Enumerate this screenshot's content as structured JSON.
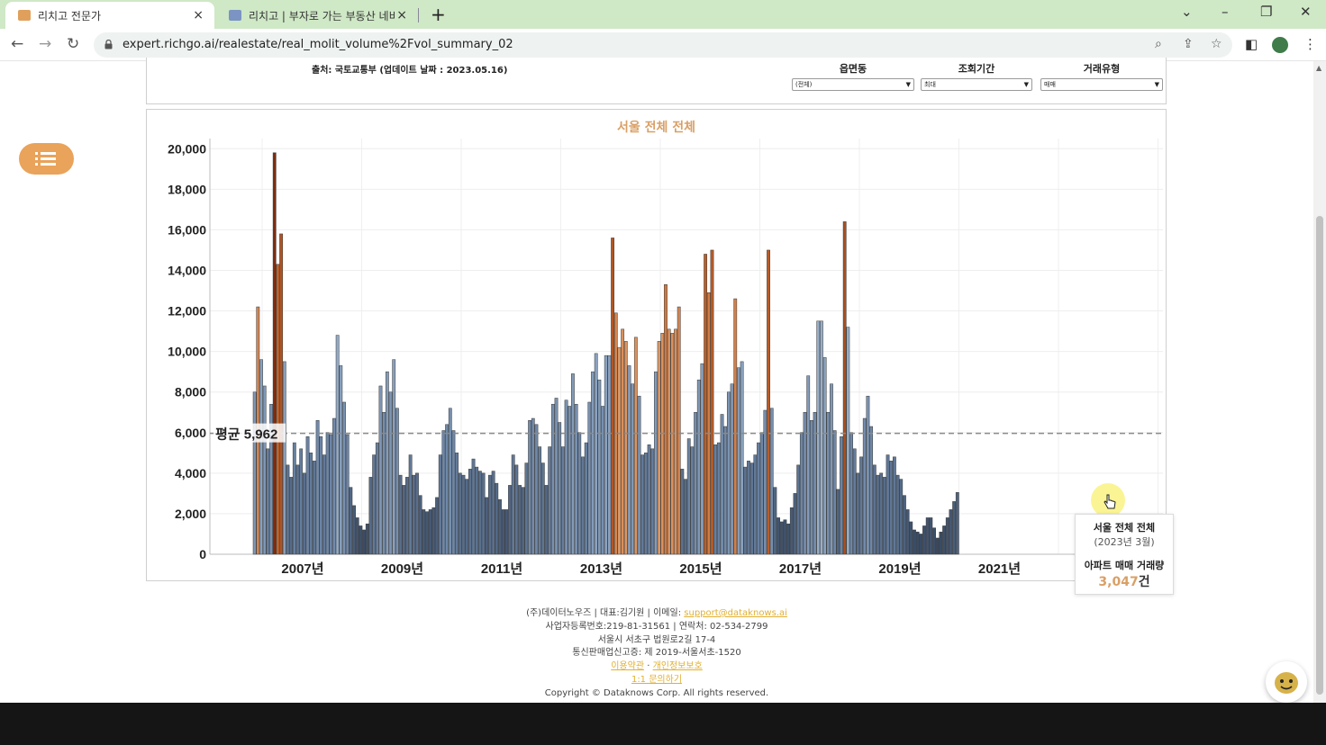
{
  "browser": {
    "tabs": [
      {
        "title": "리치고 전문가",
        "active": true
      },
      {
        "title": "리치고 | 부자로 가는 부동산 네비",
        "active": false
      }
    ],
    "new_tab_glyph": "+",
    "close_glyph": "×",
    "url": "expert.richgo.ai/realestate/real_molit_volume%2Fvol_summary_02",
    "icons": [
      "back-icon",
      "forward-icon",
      "reload-icon",
      "lock-icon",
      "zoom-icon",
      "share-icon",
      "star-icon",
      "sidepanel-icon",
      "profile-icon",
      "menu-dots-icon",
      "minimize-icon",
      "restore-icon",
      "close-window-icon",
      "tab-search-icon"
    ]
  },
  "filters": {
    "source": "출처: 국토교통부 (업데이트 날짜 : 2023.05.16)",
    "region_label": "읍면동",
    "region_value": "(전체)",
    "period_label": "조회기간",
    "period_value": "최대",
    "type_label": "거래유형",
    "type_value": "매매"
  },
  "chart_data": {
    "type": "bar",
    "title": "서울 전체 전체",
    "ylim": [
      0,
      20500
    ],
    "yticks": [
      "0",
      "2,000",
      "4,000",
      "6,000",
      "8,000",
      "10,000",
      "12,000",
      "14,000",
      "16,000",
      "18,000",
      "20,000"
    ],
    "xticks": [
      "2007년",
      "2009년",
      "2011년",
      "2013년",
      "2015년",
      "2017년",
      "2019년",
      "2021년"
    ],
    "grid": true,
    "average_label": "평균 5,962",
    "average": 5962,
    "values": [
      8000,
      12200,
      9600,
      8300,
      5200,
      7400,
      19800,
      14300,
      15800,
      9500,
      4400,
      3800,
      5500,
      4400,
      5200,
      4000,
      5800,
      5000,
      4600,
      6600,
      5800,
      4900,
      6000,
      5900,
      6700,
      10800,
      9300,
      7500,
      5900,
      3300,
      2400,
      1800,
      1400,
      1200,
      1500,
      3800,
      4900,
      5500,
      8300,
      7000,
      9000,
      8000,
      9600,
      7200,
      3900,
      3400,
      3800,
      4900,
      3900,
      4000,
      2900,
      2200,
      2100,
      2200,
      2300,
      2800,
      4900,
      6100,
      6400,
      7200,
      6100,
      5000,
      4000,
      3900,
      3700,
      4200,
      4700,
      4300,
      4100,
      4000,
      2800,
      3900,
      4100,
      3500,
      2700,
      2200,
      2200,
      3400,
      4900,
      4400,
      3400,
      3300,
      4500,
      6600,
      6700,
      6400,
      5300,
      4500,
      3400,
      5300,
      7400,
      7700,
      6500,
      5300,
      7600,
      7300,
      8900,
      7400,
      6000,
      4800,
      5500,
      7500,
      9000,
      9900,
      8600,
      7300,
      9800,
      9800,
      15600,
      11900,
      10200,
      11100,
      10500,
      9300,
      8400,
      10700,
      7800,
      4900,
      5000,
      5400,
      5200,
      9000,
      10500,
      10900,
      13300,
      11100,
      10900,
      11100,
      12200,
      4200,
      3700,
      5700,
      5300,
      7000,
      8600,
      9400,
      14800,
      12900,
      15000,
      5400,
      5500,
      6900,
      6300,
      8000,
      8400,
      12600,
      9200,
      9500,
      4300,
      4600,
      4500,
      4900,
      5500,
      6000,
      7100,
      15000,
      7200,
      3300,
      1800,
      1600,
      1700,
      1500,
      2300,
      3000,
      4400,
      6000,
      7000,
      8800,
      6600,
      7000,
      11500,
      11500,
      9700,
      7000,
      8400,
      6100,
      3200,
      5800,
      16400,
      11200,
      6000,
      5200,
      4000,
      4800,
      6700,
      7800,
      6300,
      4400,
      3900,
      4000,
      3800,
      4900,
      4600,
      4800,
      3900,
      3700,
      2900,
      2200,
      1600,
      1200,
      1100,
      1000,
      1400,
      1800,
      1800,
      1300,
      800,
      1100,
      1400,
      1800,
      2200,
      2600,
      3047
    ],
    "colors": {
      "cool_dark": "#2f3f56",
      "cool_light": "#b2c7de",
      "warm_light": "#f0c79e",
      "warm_dark": "#7a2a10",
      "bar_border": "#3a3a3a"
    },
    "highlight_label": "서울 전체 전체",
    "highlight_sub": "(2023년 3월)",
    "highlight_metric": "아파트 매매 거래량",
    "highlight_value": "3,047",
    "highlight_unit": "건"
  },
  "footer": {
    "line1_prefix": "(주)데이터노우즈 | 대표:김기원 | 이메일: ",
    "email": "support@dataknows.ai",
    "line2": "사업자등록번호:219-81-31561 | 연락처: 02-534-2799",
    "line3": "서울시 서초구 법원로2길 17-4",
    "line4": "통신판매업신고증: 제 2019-서울서초-1520",
    "terms": "이용약관",
    "sep": " · ",
    "privacy": "개인정보보호",
    "inquiry": "1:1 문의하기",
    "copyright": "Copyright © Dataknows Corp. All rights reserved."
  }
}
